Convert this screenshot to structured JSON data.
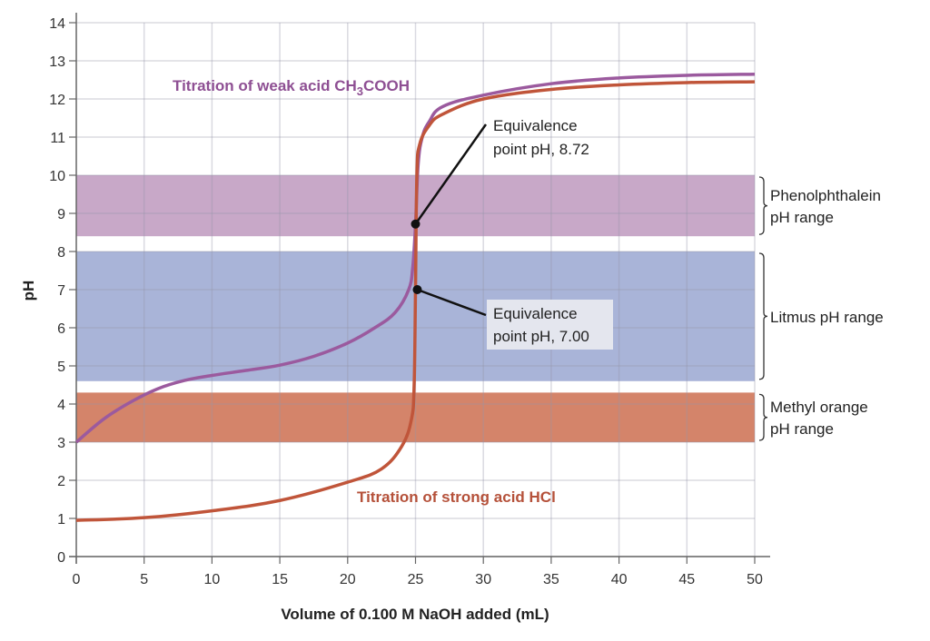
{
  "chart_data": {
    "type": "line",
    "xlabel": "Volume of 0.100 M NaOH added (mL)",
    "ylabel": "pH",
    "xlim": [
      0,
      50
    ],
    "ylim": [
      0,
      14
    ],
    "xticks": [
      0,
      5,
      10,
      15,
      20,
      25,
      30,
      35,
      40,
      45,
      50
    ],
    "yticks": [
      0,
      1,
      2,
      3,
      4,
      5,
      6,
      7,
      8,
      9,
      10,
      11,
      12,
      13,
      14
    ],
    "grid": true,
    "series": [
      {
        "name": "Titration of weak acid CH3COOH",
        "label_main": "Titration of weak acid CH",
        "label_sub": "3",
        "label_tail": "COOH",
        "color": "#9b5a9e",
        "x": [
          0,
          2,
          4,
          6,
          8,
          10,
          12.5,
          15,
          17.5,
          20,
          22,
          23.5,
          24.5,
          24.8,
          25,
          25.2,
          25.5,
          26,
          27,
          30,
          35,
          40,
          45,
          50
        ],
        "y": [
          3.0,
          3.6,
          4.05,
          4.4,
          4.62,
          4.75,
          4.88,
          5.02,
          5.25,
          5.6,
          6.0,
          6.4,
          7.0,
          7.6,
          8.72,
          10.3,
          11.0,
          11.4,
          11.8,
          12.1,
          12.4,
          12.55,
          12.62,
          12.65
        ]
      },
      {
        "name": "Titration of strong acid HCl",
        "color": "#c0553a",
        "x": [
          0,
          5,
          10,
          15,
          20,
          22.5,
          24,
          24.7,
          24.9,
          25,
          25.1,
          25.3,
          26,
          27,
          30,
          35,
          40,
          45,
          50
        ],
        "y": [
          0.95,
          1.02,
          1.2,
          1.47,
          1.95,
          2.3,
          2.9,
          3.6,
          4.5,
          7.0,
          10.0,
          10.8,
          11.3,
          11.6,
          12.0,
          12.25,
          12.37,
          12.43,
          12.45
        ]
      }
    ],
    "bands": [
      {
        "name": "Phenolphthalein pH range",
        "line1": "Phenolphthalein",
        "line2": "pH range",
        "from": 8.4,
        "to": 10.0,
        "color": "#c8a8c8"
      },
      {
        "name": "Litmus pH range",
        "line1": "Litmus pH range",
        "line2": "",
        "from": 4.6,
        "to": 8.0,
        "color": "#a9b4d8"
      },
      {
        "name": "Methyl orange pH range",
        "line1": "Methyl orange",
        "line2": "pH range",
        "from": 3.0,
        "to": 4.3,
        "color": "#d4846a"
      }
    ],
    "annotations": [
      {
        "line1": "Equivalence",
        "line2": "point pH, 8.72",
        "x": 25,
        "y": 8.72
      },
      {
        "line1": "Equivalence",
        "line2": "point pH, 7.00",
        "x": 25,
        "y": 7.0
      }
    ]
  }
}
